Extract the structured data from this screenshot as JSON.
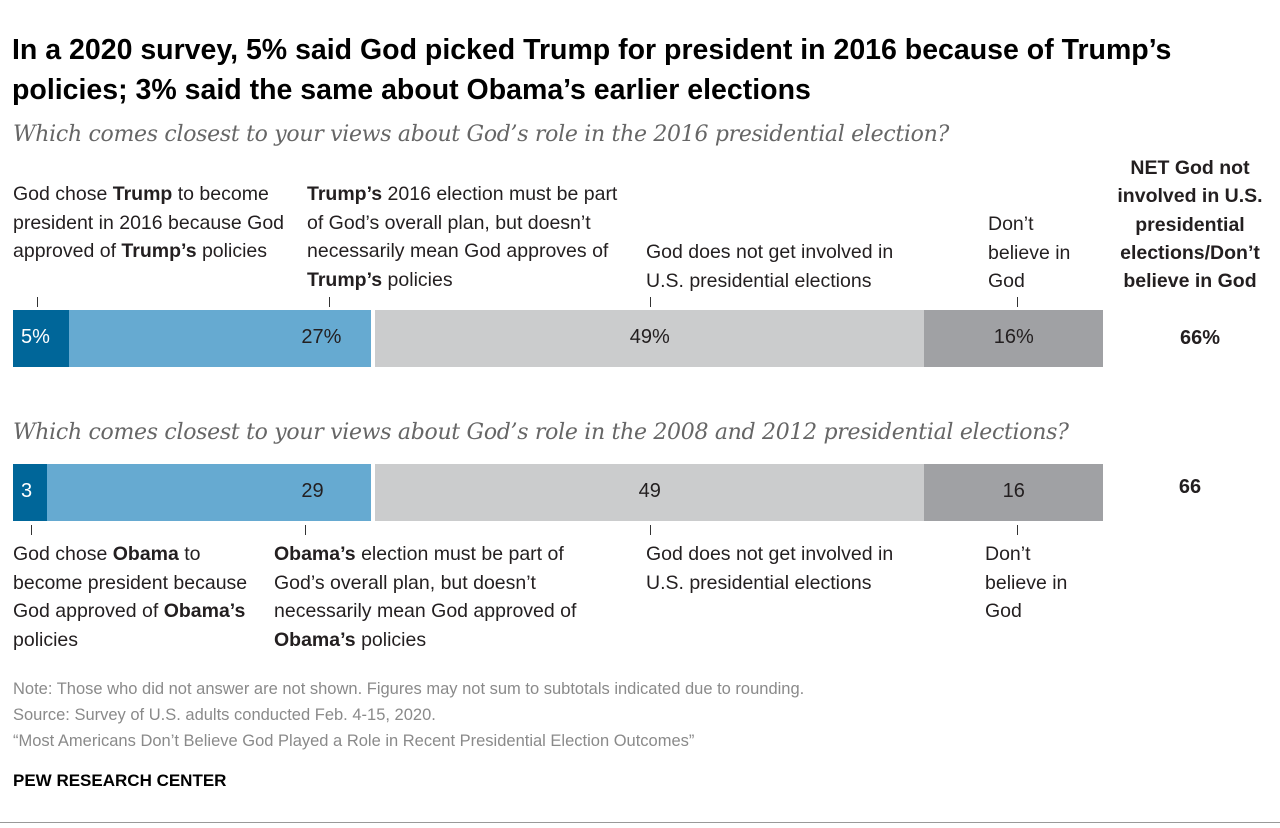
{
  "title": "In a 2020 survey, 5% said God picked Trump for president in 2016 because of Trump’s policies; 3% said the same about Obama’s earlier elections",
  "net_header": "NET God not involved in U.S. presidential elections/Don’t believe in God",
  "chart_data": [
    {
      "type": "bar",
      "orientation": "horizontal-stacked-diverging",
      "question": "Which comes closest to your views about God’s role in the 2016 presidential election?",
      "categories": [
        [
          {
            "t": "God chose "
          },
          {
            "t": "Trump",
            "b": true
          },
          {
            "t": " to become president in 2016 because God approved of "
          },
          {
            "t": "Trump’s",
            "b": true
          },
          {
            "t": " policies"
          }
        ],
        [
          {
            "t": "Trump’s",
            "b": true
          },
          {
            "t": " 2016 election must be part of God’s overall plan, but doesn’t necessarily mean God approves of "
          },
          {
            "t": "Trump’s",
            "b": true
          },
          {
            "t": " policies"
          }
        ],
        [
          {
            "t": "God does not get involved in U.S. presidential elections"
          }
        ],
        [
          {
            "t": "Don’t believe in God"
          }
        ]
      ],
      "values": [
        5,
        27,
        49,
        16
      ],
      "value_labels": [
        "5%",
        "27%",
        "49%",
        "16%"
      ],
      "net": "66%"
    },
    {
      "type": "bar",
      "orientation": "horizontal-stacked-diverging",
      "question": "Which comes closest to your views about God’s role in the 2008 and 2012 presidential elections?",
      "categories": [
        [
          {
            "t": "God chose "
          },
          {
            "t": "Obama",
            "b": true
          },
          {
            "t": " to become president because God approved of "
          },
          {
            "t": "Obama’s",
            "b": true
          },
          {
            "t": " policies"
          }
        ],
        [
          {
            "t": "Obama’s",
            "b": true
          },
          {
            "t": " election must be part of God’s overall plan, but doesn’t necessarily mean God approved of "
          },
          {
            "t": "Obama’s",
            "b": true
          },
          {
            "t": " policies"
          }
        ],
        [
          {
            "t": "God does not get involved in U.S. presidential elections"
          }
        ],
        [
          {
            "t": "Don’t believe in God"
          }
        ]
      ],
      "values": [
        3,
        29,
        49,
        16
      ],
      "value_labels": [
        "3",
        "29",
        "49",
        "16"
      ],
      "net": "66"
    }
  ],
  "colors": {
    "seg1": "#006699",
    "seg2": "#66aad1",
    "seg3": "#cbcccd",
    "seg4": "#a0a1a4",
    "seg1_text": "#ffffff"
  },
  "notes": {
    "note": "Note: Those who did not answer are not shown. Figures may not sum to subtotals indicated due to rounding.",
    "source": "Source: Survey of U.S. adults conducted Feb. 4-15, 2020.",
    "report": "“Most Americans Don’t Believe God Played a Role in Recent Presidential Election Outcomes”",
    "brand": "PEW RESEARCH CENTER"
  }
}
